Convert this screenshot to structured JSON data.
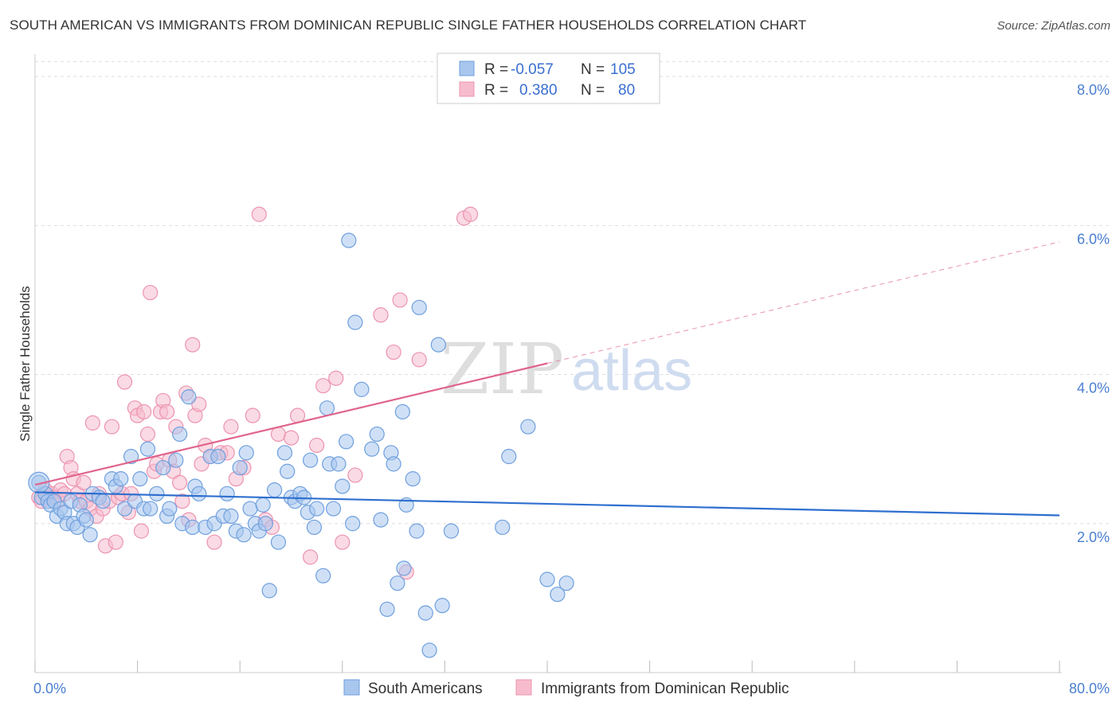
{
  "title": "SOUTH AMERICAN VS IMMIGRANTS FROM DOMINICAN REPUBLIC SINGLE FATHER HOUSEHOLDS CORRELATION CHART",
  "source": "Source: ZipAtlas.com",
  "watermark": {
    "zip": "ZIP",
    "atlas": "atlas"
  },
  "legend_box": {
    "rows": [
      {
        "r_label": "R =",
        "r_value": "-0.057",
        "n_label": "N =",
        "n_value": "105"
      },
      {
        "r_label": "R =",
        "r_value": "0.380",
        "n_label": "N =",
        "n_value": "80"
      }
    ]
  },
  "colors": {
    "blue_fill": "#a8c6ee",
    "blue_stroke": "#6f9fde",
    "blue_line": "#2e6fcf",
    "pink_fill": "#f6bccd",
    "pink_stroke": "#ec94b0",
    "pink_line": "#e0648c",
    "grid": "#dddddd",
    "tick_text": "#4a7fd0"
  },
  "chart_data": {
    "type": "scatter",
    "title": "SOUTH AMERICAN VS IMMIGRANTS FROM DOMINICAN REPUBLIC SINGLE FATHER HOUSEHOLDS CORRELATION CHART",
    "xlabel": "",
    "ylabel": "Single Father Households",
    "xlim": [
      0,
      80
    ],
    "ylim": [
      0,
      8.3
    ],
    "x_tick_labels": [
      "0.0%",
      "80.0%"
    ],
    "y_ticks": [
      2,
      4,
      6,
      8
    ],
    "y_tick_labels": [
      "2.0%",
      "4.0%",
      "6.0%",
      "8.0%"
    ],
    "grid": true,
    "legend_position": "bottom",
    "series": [
      {
        "name": "South Americans",
        "color": "#a8c6ee",
        "trend": {
          "x": [
            0,
            80
          ],
          "y": [
            2.42,
            2.11
          ],
          "dashed_from": null
        },
        "points": [
          [
            0.3,
            2.55
          ],
          [
            0.5,
            2.35
          ],
          [
            0.8,
            2.4
          ],
          [
            1.0,
            2.3
          ],
          [
            1.2,
            2.25
          ],
          [
            1.5,
            2.3
          ],
          [
            1.7,
            2.1
          ],
          [
            2.0,
            2.2
          ],
          [
            2.3,
            2.15
          ],
          [
            2.5,
            2.0
          ],
          [
            2.8,
            2.3
          ],
          [
            3.0,
            2.0
          ],
          [
            3.3,
            1.95
          ],
          [
            3.5,
            2.25
          ],
          [
            3.8,
            2.1
          ],
          [
            4.0,
            2.05
          ],
          [
            4.3,
            1.85
          ],
          [
            4.5,
            2.4
          ],
          [
            5.0,
            2.35
          ],
          [
            5.3,
            2.3
          ],
          [
            6.0,
            2.6
          ],
          [
            6.3,
            2.5
          ],
          [
            6.7,
            2.6
          ],
          [
            7.0,
            2.2
          ],
          [
            7.5,
            2.9
          ],
          [
            7.8,
            2.3
          ],
          [
            8.2,
            2.6
          ],
          [
            8.5,
            2.2
          ],
          [
            8.8,
            3.0
          ],
          [
            9.0,
            2.2
          ],
          [
            9.5,
            2.4
          ],
          [
            10.0,
            2.75
          ],
          [
            10.3,
            2.1
          ],
          [
            10.5,
            2.2
          ],
          [
            11.0,
            2.85
          ],
          [
            11.3,
            3.2
          ],
          [
            11.5,
            2.0
          ],
          [
            12.0,
            3.7
          ],
          [
            12.3,
            1.95
          ],
          [
            12.5,
            2.5
          ],
          [
            12.8,
            2.4
          ],
          [
            13.3,
            1.95
          ],
          [
            13.7,
            2.9
          ],
          [
            14.0,
            2.0
          ],
          [
            14.3,
            2.9
          ],
          [
            14.7,
            2.1
          ],
          [
            15.0,
            2.4
          ],
          [
            15.3,
            2.1
          ],
          [
            15.7,
            1.9
          ],
          [
            16.0,
            2.75
          ],
          [
            16.3,
            1.85
          ],
          [
            16.5,
            2.95
          ],
          [
            16.8,
            2.2
          ],
          [
            17.2,
            2.0
          ],
          [
            17.5,
            1.9
          ],
          [
            17.8,
            2.25
          ],
          [
            18.0,
            2.0
          ],
          [
            18.3,
            1.1
          ],
          [
            18.7,
            2.45
          ],
          [
            19.0,
            1.75
          ],
          [
            19.5,
            2.95
          ],
          [
            19.7,
            2.7
          ],
          [
            20.0,
            2.35
          ],
          [
            20.3,
            2.3
          ],
          [
            20.7,
            2.4
          ],
          [
            21.0,
            2.35
          ],
          [
            21.3,
            2.15
          ],
          [
            21.5,
            2.85
          ],
          [
            21.8,
            1.95
          ],
          [
            22.0,
            2.2
          ],
          [
            22.5,
            1.3
          ],
          [
            22.8,
            3.55
          ],
          [
            23.0,
            2.8
          ],
          [
            23.3,
            2.2
          ],
          [
            23.7,
            2.8
          ],
          [
            24.0,
            2.5
          ],
          [
            24.3,
            3.1
          ],
          [
            24.5,
            5.8
          ],
          [
            24.8,
            2.0
          ],
          [
            25.0,
            4.7
          ],
          [
            25.5,
            3.8
          ],
          [
            26.3,
            3.0
          ],
          [
            26.7,
            3.2
          ],
          [
            27.0,
            2.05
          ],
          [
            27.5,
            0.85
          ],
          [
            27.8,
            2.95
          ],
          [
            28.0,
            2.8
          ],
          [
            28.3,
            1.2
          ],
          [
            28.7,
            3.5
          ],
          [
            28.8,
            1.4
          ],
          [
            29.0,
            2.25
          ],
          [
            29.5,
            2.6
          ],
          [
            29.8,
            1.9
          ],
          [
            30.0,
            4.9
          ],
          [
            30.5,
            0.8
          ],
          [
            30.8,
            0.3
          ],
          [
            31.5,
            4.4
          ],
          [
            31.8,
            0.9
          ],
          [
            32.5,
            1.9
          ],
          [
            36.5,
            1.95
          ],
          [
            37.0,
            2.9
          ],
          [
            38.5,
            3.3
          ],
          [
            40.0,
            1.25
          ],
          [
            40.8,
            1.05
          ],
          [
            41.5,
            1.2
          ]
        ]
      },
      {
        "name": "Immigrants from Dominican Republic",
        "color": "#f6bccd",
        "trend": {
          "x": [
            0,
            80
          ],
          "y": [
            2.52,
            5.78
          ],
          "dashed_from": 40
        },
        "points": [
          [
            0.3,
            2.35
          ],
          [
            0.5,
            2.3
          ],
          [
            0.8,
            2.45
          ],
          [
            1.0,
            2.35
          ],
          [
            1.3,
            2.4
          ],
          [
            1.5,
            2.35
          ],
          [
            1.8,
            2.3
          ],
          [
            2.0,
            2.45
          ],
          [
            2.3,
            2.4
          ],
          [
            2.5,
            2.9
          ],
          [
            2.8,
            2.75
          ],
          [
            3.0,
            2.6
          ],
          [
            3.3,
            2.4
          ],
          [
            3.5,
            2.3
          ],
          [
            3.8,
            2.55
          ],
          [
            4.0,
            2.3
          ],
          [
            4.3,
            2.2
          ],
          [
            4.5,
            3.35
          ],
          [
            4.8,
            2.1
          ],
          [
            5.0,
            2.4
          ],
          [
            5.3,
            2.2
          ],
          [
            5.5,
            1.7
          ],
          [
            5.8,
            2.3
          ],
          [
            6.0,
            3.3
          ],
          [
            6.3,
            1.75
          ],
          [
            6.5,
            2.35
          ],
          [
            6.8,
            2.4
          ],
          [
            7.0,
            3.9
          ],
          [
            7.3,
            2.15
          ],
          [
            7.5,
            2.4
          ],
          [
            7.8,
            3.55
          ],
          [
            8.0,
            3.45
          ],
          [
            8.3,
            1.9
          ],
          [
            8.5,
            3.5
          ],
          [
            8.8,
            3.2
          ],
          [
            9.0,
            5.1
          ],
          [
            9.3,
            2.7
          ],
          [
            9.5,
            2.8
          ],
          [
            9.8,
            3.5
          ],
          [
            10.0,
            3.65
          ],
          [
            10.3,
            3.5
          ],
          [
            10.5,
            2.85
          ],
          [
            10.8,
            2.7
          ],
          [
            11.0,
            3.3
          ],
          [
            11.3,
            2.55
          ],
          [
            11.5,
            2.3
          ],
          [
            11.8,
            3.75
          ],
          [
            12.0,
            2.05
          ],
          [
            12.3,
            4.4
          ],
          [
            12.5,
            3.45
          ],
          [
            12.8,
            3.6
          ],
          [
            13.0,
            2.8
          ],
          [
            13.3,
            3.05
          ],
          [
            13.7,
            2.9
          ],
          [
            14.0,
            1.75
          ],
          [
            14.5,
            2.95
          ],
          [
            15.0,
            2.95
          ],
          [
            15.3,
            3.3
          ],
          [
            15.7,
            2.6
          ],
          [
            16.3,
            2.75
          ],
          [
            17.0,
            3.45
          ],
          [
            17.5,
            6.15
          ],
          [
            18.0,
            2.05
          ],
          [
            18.5,
            1.95
          ],
          [
            19.0,
            3.2
          ],
          [
            20.0,
            3.15
          ],
          [
            20.5,
            3.45
          ],
          [
            21.5,
            1.55
          ],
          [
            22.0,
            3.05
          ],
          [
            22.5,
            3.85
          ],
          [
            23.5,
            3.95
          ],
          [
            24.0,
            1.75
          ],
          [
            25.0,
            2.65
          ],
          [
            27.0,
            4.8
          ],
          [
            28.0,
            4.3
          ],
          [
            28.5,
            5.0
          ],
          [
            29.0,
            1.35
          ],
          [
            30.0,
            4.2
          ],
          [
            33.5,
            6.1
          ],
          [
            34.0,
            6.15
          ]
        ]
      }
    ]
  }
}
